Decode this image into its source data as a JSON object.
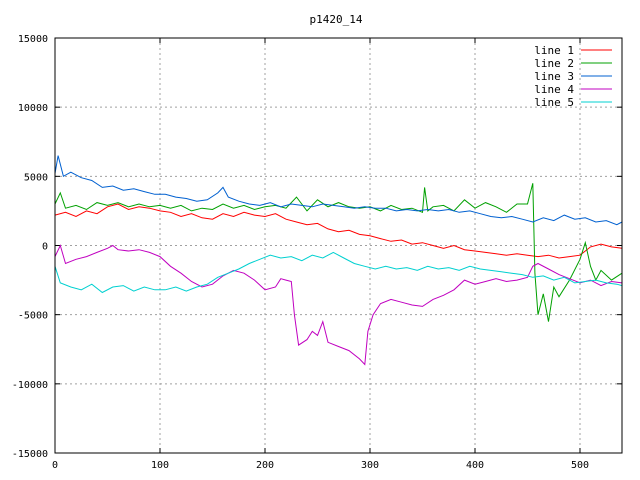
{
  "chart_data": {
    "type": "line",
    "title": "p1420_14",
    "xlabel": "",
    "ylabel": "",
    "xlim": [
      0,
      540
    ],
    "ylim": [
      -15000,
      15000
    ],
    "xticks": [
      0,
      100,
      200,
      300,
      400,
      500
    ],
    "yticks": [
      -15000,
      -10000,
      -5000,
      0,
      5000,
      10000,
      15000
    ],
    "grid": true,
    "legend_position": "top-right",
    "series": [
      {
        "name": "line 1",
        "color": "#ff0000",
        "points": [
          [
            0,
            2200
          ],
          [
            10,
            2400
          ],
          [
            20,
            2100
          ],
          [
            30,
            2500
          ],
          [
            40,
            2300
          ],
          [
            50,
            2800
          ],
          [
            60,
            3000
          ],
          [
            70,
            2600
          ],
          [
            80,
            2800
          ],
          [
            90,
            2700
          ],
          [
            100,
            2500
          ],
          [
            110,
            2400
          ],
          [
            120,
            2100
          ],
          [
            130,
            2300
          ],
          [
            140,
            2000
          ],
          [
            150,
            1900
          ],
          [
            160,
            2300
          ],
          [
            170,
            2100
          ],
          [
            180,
            2400
          ],
          [
            190,
            2200
          ],
          [
            200,
            2100
          ],
          [
            210,
            2300
          ],
          [
            220,
            1900
          ],
          [
            230,
            1700
          ],
          [
            240,
            1500
          ],
          [
            250,
            1600
          ],
          [
            260,
            1200
          ],
          [
            270,
            1000
          ],
          [
            280,
            1100
          ],
          [
            290,
            800
          ],
          [
            300,
            700
          ],
          [
            310,
            500
          ],
          [
            320,
            300
          ],
          [
            330,
            400
          ],
          [
            340,
            100
          ],
          [
            350,
            200
          ],
          [
            360,
            0
          ],
          [
            370,
            -200
          ],
          [
            380,
            0
          ],
          [
            390,
            -300
          ],
          [
            400,
            -400
          ],
          [
            410,
            -500
          ],
          [
            420,
            -600
          ],
          [
            430,
            -700
          ],
          [
            440,
            -600
          ],
          [
            450,
            -700
          ],
          [
            460,
            -800
          ],
          [
            470,
            -700
          ],
          [
            480,
            -900
          ],
          [
            490,
            -800
          ],
          [
            500,
            -700
          ],
          [
            510,
            -100
          ],
          [
            520,
            100
          ],
          [
            530,
            -100
          ],
          [
            540,
            -200
          ]
        ]
      },
      {
        "name": "line 2",
        "color": "#00a000",
        "points": [
          [
            0,
            3000
          ],
          [
            5,
            3800
          ],
          [
            10,
            2700
          ],
          [
            20,
            2900
          ],
          [
            30,
            2600
          ],
          [
            40,
            3100
          ],
          [
            50,
            2900
          ],
          [
            60,
            3100
          ],
          [
            70,
            2800
          ],
          [
            80,
            3000
          ],
          [
            90,
            2800
          ],
          [
            100,
            2900
          ],
          [
            110,
            2700
          ],
          [
            120,
            2900
          ],
          [
            130,
            2500
          ],
          [
            140,
            2700
          ],
          [
            150,
            2600
          ],
          [
            160,
            3000
          ],
          [
            170,
            2700
          ],
          [
            180,
            2900
          ],
          [
            190,
            2600
          ],
          [
            200,
            2800
          ],
          [
            210,
            2900
          ],
          [
            220,
            2700
          ],
          [
            230,
            3500
          ],
          [
            240,
            2500
          ],
          [
            250,
            3300
          ],
          [
            260,
            2800
          ],
          [
            270,
            3100
          ],
          [
            280,
            2800
          ],
          [
            290,
            2700
          ],
          [
            300,
            2800
          ],
          [
            310,
            2500
          ],
          [
            320,
            2900
          ],
          [
            330,
            2600
          ],
          [
            340,
            2700
          ],
          [
            350,
            2400
          ],
          [
            352,
            4200
          ],
          [
            355,
            2500
          ],
          [
            360,
            2800
          ],
          [
            370,
            2900
          ],
          [
            380,
            2500
          ],
          [
            390,
            3300
          ],
          [
            400,
            2700
          ],
          [
            410,
            3100
          ],
          [
            420,
            2800
          ],
          [
            430,
            2400
          ],
          [
            440,
            3000
          ],
          [
            450,
            3000
          ],
          [
            455,
            4500
          ],
          [
            457,
            -2000
          ],
          [
            460,
            -5000
          ],
          [
            465,
            -3500
          ],
          [
            470,
            -5500
          ],
          [
            475,
            -3000
          ],
          [
            480,
            -3700
          ],
          [
            490,
            -2500
          ],
          [
            500,
            -1000
          ],
          [
            505,
            200
          ],
          [
            510,
            -1500
          ],
          [
            515,
            -2500
          ],
          [
            520,
            -1800
          ],
          [
            530,
            -2500
          ],
          [
            540,
            -2000
          ]
        ]
      },
      {
        "name": "line 3",
        "color": "#0060d0",
        "points": [
          [
            0,
            5200
          ],
          [
            3,
            6500
          ],
          [
            8,
            5000
          ],
          [
            15,
            5300
          ],
          [
            25,
            4900
          ],
          [
            35,
            4700
          ],
          [
            45,
            4200
          ],
          [
            55,
            4300
          ],
          [
            65,
            4000
          ],
          [
            75,
            4100
          ],
          [
            85,
            3900
          ],
          [
            95,
            3700
          ],
          [
            105,
            3700
          ],
          [
            115,
            3500
          ],
          [
            125,
            3400
          ],
          [
            135,
            3200
          ],
          [
            145,
            3300
          ],
          [
            155,
            3800
          ],
          [
            160,
            4200
          ],
          [
            165,
            3500
          ],
          [
            175,
            3200
          ],
          [
            185,
            3000
          ],
          [
            195,
            2900
          ],
          [
            205,
            3100
          ],
          [
            215,
            2800
          ],
          [
            225,
            3000
          ],
          [
            235,
            2900
          ],
          [
            245,
            2800
          ],
          [
            255,
            3000
          ],
          [
            265,
            2900
          ],
          [
            275,
            2800
          ],
          [
            285,
            2700
          ],
          [
            295,
            2800
          ],
          [
            305,
            2700
          ],
          [
            315,
            2700
          ],
          [
            325,
            2500
          ],
          [
            335,
            2600
          ],
          [
            345,
            2500
          ],
          [
            355,
            2600
          ],
          [
            365,
            2500
          ],
          [
            375,
            2600
          ],
          [
            385,
            2400
          ],
          [
            395,
            2500
          ],
          [
            405,
            2300
          ],
          [
            415,
            2100
          ],
          [
            425,
            2000
          ],
          [
            435,
            2100
          ],
          [
            445,
            1900
          ],
          [
            455,
            1700
          ],
          [
            465,
            2000
          ],
          [
            475,
            1800
          ],
          [
            485,
            2200
          ],
          [
            495,
            1900
          ],
          [
            505,
            2000
          ],
          [
            515,
            1700
          ],
          [
            525,
            1800
          ],
          [
            535,
            1500
          ],
          [
            540,
            1700
          ]
        ]
      },
      {
        "name": "line 4",
        "color": "#c000c0",
        "points": [
          [
            0,
            -800
          ],
          [
            5,
            0
          ],
          [
            10,
            -1300
          ],
          [
            20,
            -1000
          ],
          [
            30,
            -800
          ],
          [
            40,
            -500
          ],
          [
            50,
            -200
          ],
          [
            55,
            0
          ],
          [
            60,
            -300
          ],
          [
            70,
            -400
          ],
          [
            80,
            -300
          ],
          [
            90,
            -500
          ],
          [
            100,
            -800
          ],
          [
            110,
            -1500
          ],
          [
            120,
            -2000
          ],
          [
            130,
            -2600
          ],
          [
            140,
            -3000
          ],
          [
            150,
            -2800
          ],
          [
            160,
            -2200
          ],
          [
            170,
            -1800
          ],
          [
            180,
            -2000
          ],
          [
            190,
            -2500
          ],
          [
            200,
            -3200
          ],
          [
            210,
            -3000
          ],
          [
            215,
            -2400
          ],
          [
            220,
            -2500
          ],
          [
            225,
            -2600
          ],
          [
            228,
            -5000
          ],
          [
            232,
            -7200
          ],
          [
            240,
            -6800
          ],
          [
            245,
            -6200
          ],
          [
            250,
            -6500
          ],
          [
            255,
            -5500
          ],
          [
            260,
            -7000
          ],
          [
            270,
            -7300
          ],
          [
            280,
            -7600
          ],
          [
            290,
            -8200
          ],
          [
            295,
            -8600
          ],
          [
            298,
            -6200
          ],
          [
            303,
            -5000
          ],
          [
            310,
            -4200
          ],
          [
            320,
            -3900
          ],
          [
            330,
            -4100
          ],
          [
            340,
            -4300
          ],
          [
            350,
            -4400
          ],
          [
            360,
            -3900
          ],
          [
            370,
            -3600
          ],
          [
            380,
            -3200
          ],
          [
            390,
            -2500
          ],
          [
            400,
            -2800
          ],
          [
            410,
            -2600
          ],
          [
            420,
            -2400
          ],
          [
            430,
            -2600
          ],
          [
            440,
            -2500
          ],
          [
            450,
            -2300
          ],
          [
            455,
            -1500
          ],
          [
            460,
            -1300
          ],
          [
            470,
            -1700
          ],
          [
            480,
            -2100
          ],
          [
            490,
            -2400
          ],
          [
            500,
            -2700
          ],
          [
            510,
            -2500
          ],
          [
            520,
            -2900
          ],
          [
            530,
            -2600
          ],
          [
            540,
            -2700
          ]
        ]
      },
      {
        "name": "line 5",
        "color": "#00d0d0",
        "points": [
          [
            0,
            -1500
          ],
          [
            5,
            -2700
          ],
          [
            15,
            -3000
          ],
          [
            25,
            -3200
          ],
          [
            35,
            -2800
          ],
          [
            45,
            -3400
          ],
          [
            55,
            -3000
          ],
          [
            65,
            -2900
          ],
          [
            75,
            -3300
          ],
          [
            85,
            -3000
          ],
          [
            95,
            -3200
          ],
          [
            105,
            -3200
          ],
          [
            115,
            -3000
          ],
          [
            125,
            -3300
          ],
          [
            135,
            -3000
          ],
          [
            145,
            -2800
          ],
          [
            155,
            -2300
          ],
          [
            165,
            -2000
          ],
          [
            175,
            -1700
          ],
          [
            185,
            -1300
          ],
          [
            195,
            -1000
          ],
          [
            205,
            -700
          ],
          [
            215,
            -900
          ],
          [
            225,
            -800
          ],
          [
            235,
            -1100
          ],
          [
            245,
            -700
          ],
          [
            255,
            -900
          ],
          [
            265,
            -500
          ],
          [
            275,
            -900
          ],
          [
            285,
            -1300
          ],
          [
            295,
            -1500
          ],
          [
            305,
            -1700
          ],
          [
            315,
            -1500
          ],
          [
            325,
            -1700
          ],
          [
            335,
            -1600
          ],
          [
            345,
            -1800
          ],
          [
            355,
            -1500
          ],
          [
            365,
            -1700
          ],
          [
            375,
            -1600
          ],
          [
            385,
            -1800
          ],
          [
            395,
            -1500
          ],
          [
            405,
            -1700
          ],
          [
            415,
            -1800
          ],
          [
            425,
            -1900
          ],
          [
            435,
            -2000
          ],
          [
            445,
            -2100
          ],
          [
            455,
            -2300
          ],
          [
            465,
            -2200
          ],
          [
            475,
            -2500
          ],
          [
            485,
            -2300
          ],
          [
            495,
            -2700
          ],
          [
            505,
            -2600
          ],
          [
            515,
            -2500
          ],
          [
            525,
            -2700
          ],
          [
            535,
            -2800
          ],
          [
            540,
            -2900
          ]
        ]
      }
    ]
  }
}
